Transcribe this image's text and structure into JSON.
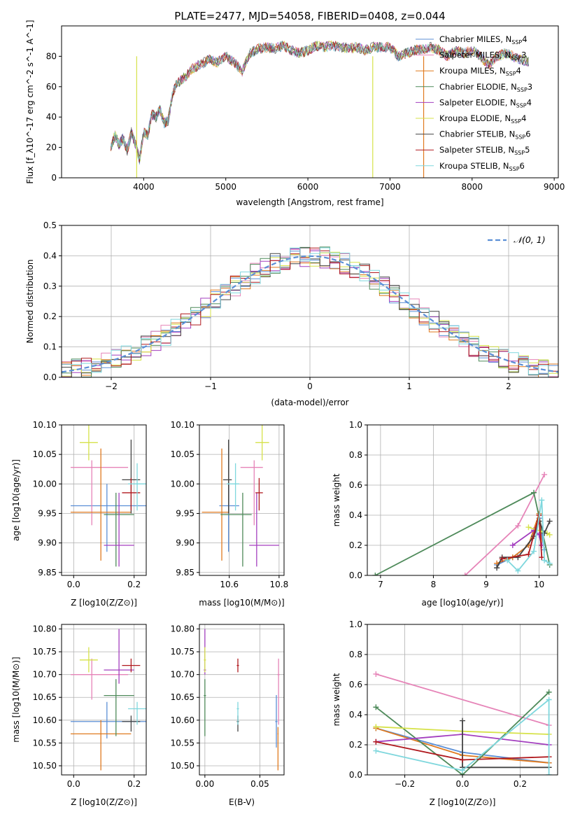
{
  "chart_data": [
    {
      "id": "spectrum",
      "type": "line",
      "title": "PLATE=2477, MJD=54058, FIBERID=0408, z=0.044",
      "xlabel": "wavelength [Angstrom, rest frame]",
      "ylabel": "Flux [f_λ10^-17 erg cm^-2 s^-1 A^-1]",
      "xlim": [
        3000,
        9050
      ],
      "ylim": [
        0,
        100
      ],
      "xticks": [
        4000,
        5000,
        6000,
        7000,
        8000,
        9000
      ],
      "yticks": [
        0,
        20,
        40,
        60,
        80
      ],
      "data_x": [
        3600,
        3650,
        3700,
        3750,
        3800,
        3850,
        3900,
        3950,
        4000,
        4050,
        4100,
        4150,
        4200,
        4250,
        4300,
        4350,
        4400,
        4500,
        4600,
        4700,
        4800,
        4900,
        5000,
        5100,
        5200,
        5300,
        5400,
        5500,
        5600,
        5700,
        5800,
        5900,
        6000,
        6100,
        6200,
        6300,
        6400,
        6500,
        6600,
        6700,
        6800,
        6900,
        7000,
        7100,
        7200,
        7300,
        7400,
        7500,
        7600,
        7700,
        7800,
        7900,
        8000,
        8100,
        8200,
        8300,
        8400,
        8500,
        8600,
        8700
      ],
      "data_y": [
        20,
        28,
        22,
        26,
        18,
        30,
        22,
        12,
        30,
        28,
        42,
        40,
        45,
        36,
        38,
        55,
        62,
        66,
        72,
        75,
        78,
        76,
        80,
        76,
        70,
        82,
        85,
        86,
        85,
        87,
        84,
        82,
        84,
        87,
        86,
        87,
        86,
        85,
        86,
        84,
        86,
        86,
        86,
        80,
        82,
        84,
        85,
        86,
        84,
        80,
        84,
        82,
        84,
        80,
        74,
        80,
        82,
        80,
        78,
        76
      ],
      "series": [
        {
          "name": "Chabrier MILES",
          "nssp": "4",
          "color": "#5b8fd6"
        },
        {
          "name": "Salpeter MILES",
          "nssp": "3",
          "color": "#e684b8"
        },
        {
          "name": "Kroupa MILES",
          "nssp": "4",
          "color": "#e07a1f"
        },
        {
          "name": "Chabrier ELODIE",
          "nssp": "3",
          "color": "#4e8a5a"
        },
        {
          "name": "Salpeter ELODIE",
          "nssp": "4",
          "color": "#a33fbf"
        },
        {
          "name": "Kroupa ELODIE",
          "nssp": "4",
          "color": "#d6e24a"
        },
        {
          "name": "Chabrier STELIB",
          "nssp": "6",
          "color": "#444444"
        },
        {
          "name": "Salpeter STELIB",
          "nssp": "5",
          "color": "#b0191e"
        },
        {
          "name": "Kroupa STELIB",
          "nssp": "6",
          "color": "#7fd7dd"
        }
      ],
      "legend_placement": "upper-right",
      "grid": false
    },
    {
      "id": "residuals",
      "type": "line",
      "xlabel": "(data-model)/error",
      "ylabel": "Normed distribution",
      "xlim": [
        -2.5,
        2.5
      ],
      "ylim": [
        0,
        0.5
      ],
      "xticks": [
        -2,
        -1,
        0,
        1,
        2
      ],
      "yticks": [
        0.0,
        0.1,
        0.2,
        0.3,
        0.4,
        0.5
      ],
      "legend_label": "𝒩(0, 1)",
      "legend_placement": "upper-right",
      "gaussian": {
        "mean": 0,
        "sigma": 1
      },
      "hist_bin_width": 0.1,
      "grid": true
    },
    {
      "id": "age-vs-Z",
      "type": "scatter",
      "xlabel": "Z [log10(Z/Z⊙)]",
      "ylabel": "age  [log10(age/yr)]",
      "xlim": [
        -0.04,
        0.24
      ],
      "ylim": [
        9.845,
        10.1
      ],
      "xticks": [
        0.0,
        0.2
      ],
      "yticks": [
        9.85,
        9.9,
        9.95,
        10.0,
        10.05,
        10.1
      ],
      "grid": true
    },
    {
      "id": "age-vs-mass",
      "type": "scatter",
      "xlabel": "mass [log10(M/M⊙)]",
      "xlim": [
        10.48,
        10.82
      ],
      "ylim": [
        9.845,
        10.1
      ],
      "xticks": [
        10.6,
        10.8
      ],
      "yticks": [
        9.85,
        9.9,
        9.95,
        10.0,
        10.05,
        10.1
      ],
      "grid": true
    },
    {
      "id": "weight-vs-age",
      "type": "line",
      "xlabel": "age  [log10(age/yr)]",
      "ylabel": "mass weight",
      "xlim": [
        6.75,
        10.35
      ],
      "ylim": [
        0,
        1.0
      ],
      "xticks": [
        7,
        8,
        9,
        10
      ],
      "yticks": [
        0.0,
        0.2,
        0.4,
        0.6,
        0.8,
        1.0
      ],
      "grid": true
    },
    {
      "id": "mass-vs-Z",
      "type": "scatter",
      "xlabel": "Z [log10(Z/Z⊙)]",
      "ylabel": "mass [log10(M/M⊙)]",
      "xlim": [
        -0.04,
        0.24
      ],
      "ylim": [
        10.48,
        10.81
      ],
      "xticks": [
        0.0,
        0.2
      ],
      "yticks": [
        10.5,
        10.55,
        10.6,
        10.65,
        10.7,
        10.75,
        10.8
      ],
      "grid": true
    },
    {
      "id": "mass-vs-ebv",
      "type": "scatter",
      "xlabel": "E(B-V)",
      "xlim": [
        -0.005,
        0.072
      ],
      "ylim": [
        10.48,
        10.81
      ],
      "xticks": [
        0.0,
        0.05
      ],
      "yticks": [
        10.5,
        10.55,
        10.6,
        10.65,
        10.7,
        10.75,
        10.8
      ],
      "grid": true
    },
    {
      "id": "weight-vs-Z",
      "type": "line",
      "xlabel": "Z [log10(Z/Z⊙)]",
      "ylabel": "mass weight",
      "xlim": [
        -0.33,
        0.33
      ],
      "ylim": [
        0,
        1.0
      ],
      "xticks": [
        -0.2,
        0.0,
        0.2
      ],
      "yticks": [
        0.0,
        0.2,
        0.4,
        0.6,
        0.8,
        1.0
      ],
      "grid": true
    }
  ],
  "fits": [
    {
      "color": "#5b8fd6",
      "Z": 0.11,
      "Zlo": -0.01,
      "Zhi": 0.24,
      "age": 9.963,
      "ageLo": 9.885,
      "ageHi": 10.0,
      "mass": 10.597,
      "massLo": 10.56,
      "massHi": 10.64,
      "ebv": 0.065,
      "ebvLo": 0.064,
      "ebvHi": 0.066,
      "ebvMassLo": 10.54,
      "ebvMassHi": 10.655,
      "wAge": [
        [
          9.2,
          0.07
        ],
        [
          9.5,
          0.12
        ],
        [
          9.8,
          0.2
        ],
        [
          10.0,
          0.38
        ],
        [
          10.1,
          0.17
        ]
      ],
      "wZ": [
        [
          -0.3,
          0.31
        ],
        [
          0.0,
          0.15
        ],
        [
          0.3,
          0.08
        ]
      ]
    },
    {
      "color": "#e684b8",
      "Z": 0.06,
      "Zlo": -0.01,
      "Zhi": 0.18,
      "age": 10.028,
      "ageLo": 9.93,
      "ageHi": 10.04,
      "mass": 10.7,
      "massLo": 10.645,
      "massHi": 10.735,
      "ebv": 0.067,
      "ebvLo": 0.066,
      "ebvHi": 0.068,
      "ebvMassLo": 10.59,
      "ebvMassHi": 10.735,
      "wAge": [
        [
          8.6,
          0.0
        ],
        [
          9.6,
          0.33
        ],
        [
          10.1,
          0.67
        ]
      ],
      "wZ": [
        [
          -0.3,
          0.67
        ],
        [
          0.3,
          0.33
        ]
      ]
    },
    {
      "color": "#e07a1f",
      "Z": 0.09,
      "Zlo": -0.01,
      "Zhi": 0.19,
      "age": 9.952,
      "ageLo": 9.87,
      "ageHi": 10.06,
      "mass": 10.57,
      "massLo": 10.49,
      "massHi": 10.6,
      "ebv": 0.0665,
      "ebvLo": 0.066,
      "ebvHi": 0.067,
      "ebvMassLo": 10.49,
      "ebvMassHi": 10.585,
      "wAge": [
        [
          9.2,
          0.08
        ],
        [
          9.5,
          0.12
        ],
        [
          9.8,
          0.2
        ],
        [
          10.0,
          0.41
        ],
        [
          10.05,
          0.2
        ]
      ],
      "wZ": [
        [
          -0.3,
          0.31
        ],
        [
          0.0,
          0.13
        ],
        [
          0.3,
          0.08
        ]
      ]
    },
    {
      "color": "#4e8a5a",
      "Z": 0.14,
      "Zlo": 0.1,
      "Zhi": 0.2,
      "age": 9.948,
      "ageLo": 9.86,
      "ageHi": 9.985,
      "mass": 10.654,
      "massLo": 10.565,
      "massHi": 10.69,
      "ebv": 0.0,
      "ebvLo": -0.001,
      "ebvHi": 0.001,
      "ebvMassLo": 10.565,
      "ebvMassHi": 10.69,
      "wAge": [
        [
          6.9,
          0.0
        ],
        [
          9.9,
          0.55
        ],
        [
          10.2,
          0.07
        ]
      ],
      "wZ": [
        [
          -0.3,
          0.45
        ],
        [
          0.0,
          0.0
        ],
        [
          0.3,
          0.55
        ]
      ]
    },
    {
      "color": "#a33fbf",
      "Z": 0.15,
      "Zlo": 0.1,
      "Zhi": 0.2,
      "age": 9.896,
      "ageLo": 9.86,
      "ageHi": 9.985,
      "mass": 10.71,
      "massLo": 10.68,
      "massHi": 10.8,
      "ebv": 0.0,
      "ebvLo": -0.001,
      "ebvHi": 0.001,
      "ebvMassLo": 10.7,
      "ebvMassHi": 10.8,
      "wAge": [
        [
          9.5,
          0.2
        ],
        [
          9.9,
          0.3
        ],
        [
          10.0,
          0.27
        ],
        [
          10.05,
          0.2
        ]
      ],
      "wZ": [
        [
          -0.3,
          0.22
        ],
        [
          0.0,
          0.27
        ],
        [
          0.3,
          0.2
        ]
      ]
    },
    {
      "color": "#d6e24a",
      "Z": 0.05,
      "Zlo": 0.02,
      "Zhi": 0.08,
      "age": 10.07,
      "ageLo": 10.04,
      "ageHi": 10.1,
      "mass": 10.732,
      "massLo": 10.705,
      "massHi": 10.76,
      "ebv": 0.0,
      "ebvLo": -0.001,
      "ebvHi": 0.001,
      "ebvMassLo": 10.705,
      "ebvMassHi": 10.76,
      "wAge": [
        [
          9.8,
          0.32
        ],
        [
          10.15,
          0.28
        ],
        [
          10.2,
          0.27
        ]
      ],
      "wZ": [
        [
          -0.3,
          0.32
        ],
        [
          0.0,
          0.29
        ],
        [
          0.3,
          0.27
        ]
      ]
    },
    {
      "color": "#444444",
      "Z": 0.19,
      "Zlo": 0.16,
      "Zhi": 0.22,
      "age": 10.007,
      "ageLo": 9.95,
      "ageHi": 10.075,
      "mass": 10.597,
      "massLo": 10.575,
      "massHi": 10.61,
      "ebv": 0.03,
      "ebvLo": 0.029,
      "ebvHi": 0.031,
      "ebvMassLo": 10.575,
      "ebvMassHi": 10.61,
      "wAge": [
        [
          9.2,
          0.05
        ],
        [
          9.3,
          0.12
        ],
        [
          9.6,
          0.12
        ],
        [
          9.9,
          0.26
        ],
        [
          10.0,
          0.36
        ],
        [
          10.1,
          0.28
        ],
        [
          10.2,
          0.36
        ]
      ],
      "wZ": [
        [
          0.0,
          0.36
        ],
        [
          0.0,
          0.05
        ],
        [
          0.3,
          0.05
        ]
      ]
    },
    {
      "color": "#b0191e",
      "Z": 0.19,
      "Zlo": 0.16,
      "Zhi": 0.22,
      "age": 9.985,
      "ageLo": 9.955,
      "ageHi": 10.01,
      "mass": 10.72,
      "massLo": 10.705,
      "massHi": 10.735,
      "ebv": 0.03,
      "ebvLo": 0.029,
      "ebvHi": 0.031,
      "ebvMassLo": 10.705,
      "ebvMassHi": 10.735,
      "wAge": [
        [
          9.3,
          0.11
        ],
        [
          9.8,
          0.14
        ],
        [
          10.0,
          0.4
        ],
        [
          10.05,
          0.12
        ]
      ],
      "wZ": [
        [
          -0.3,
          0.22
        ],
        [
          0.0,
          0.1
        ],
        [
          0.3,
          0.12
        ]
      ]
    },
    {
      "color": "#7fd7dd",
      "Z": 0.21,
      "Zlo": 0.18,
      "Zhi": 0.24,
      "age": 10.0,
      "ageLo": 9.955,
      "ageHi": 10.035,
      "mass": 10.625,
      "massLo": 10.59,
      "massHi": 10.64,
      "ebv": 0.03,
      "ebvLo": 0.029,
      "ebvHi": 0.031,
      "ebvMassLo": 10.59,
      "ebvMassHi": 10.64,
      "wAge": [
        [
          9.4,
          0.1
        ],
        [
          9.6,
          0.03
        ],
        [
          9.9,
          0.16
        ],
        [
          10.05,
          0.5
        ],
        [
          10.1,
          0.1
        ],
        [
          10.2,
          0.08
        ]
      ],
      "wZ": [
        [
          -0.3,
          0.16
        ],
        [
          0.0,
          0.03
        ],
        [
          0.3,
          0.5
        ],
        [
          0.3,
          0.0
        ]
      ]
    }
  ],
  "colors": {
    "gaussian": "#5b8fd6",
    "grid": "#b0b0b0"
  }
}
